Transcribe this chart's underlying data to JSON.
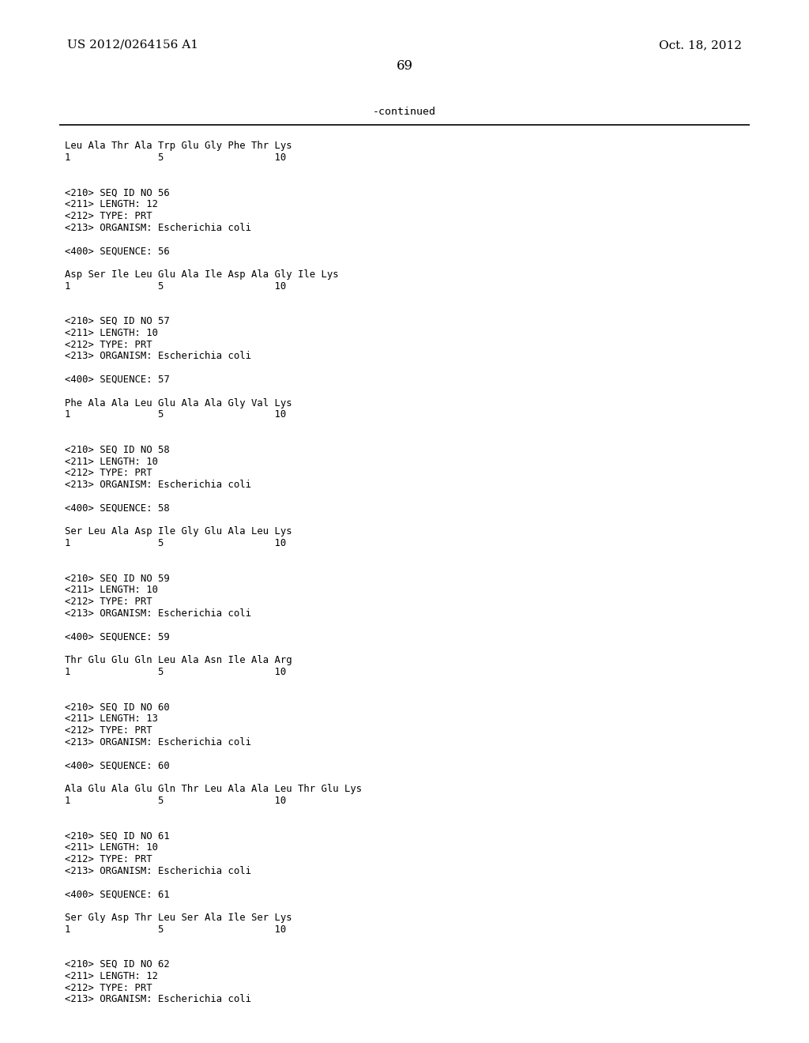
{
  "top_left": "US 2012/0264156 A1",
  "top_right": "Oct. 18, 2012",
  "page_number": "69",
  "continued_label": "-continued",
  "bg_color": "#ffffff",
  "text_color": "#000000",
  "header_fontsize": 11,
  "page_num_fontsize": 12,
  "body_fontsize": 8.8,
  "continued_fontsize": 9.5,
  "lines": [
    "Leu Ala Thr Ala Trp Glu Gly Phe Thr Lys",
    "1               5                   10",
    "",
    "",
    "<210> SEQ ID NO 56",
    "<211> LENGTH: 12",
    "<212> TYPE: PRT",
    "<213> ORGANISM: Escherichia coli",
    "",
    "<400> SEQUENCE: 56",
    "",
    "Asp Ser Ile Leu Glu Ala Ile Asp Ala Gly Ile Lys",
    "1               5                   10",
    "",
    "",
    "<210> SEQ ID NO 57",
    "<211> LENGTH: 10",
    "<212> TYPE: PRT",
    "<213> ORGANISM: Escherichia coli",
    "",
    "<400> SEQUENCE: 57",
    "",
    "Phe Ala Ala Leu Glu Ala Ala Gly Val Lys",
    "1               5                   10",
    "",
    "",
    "<210> SEQ ID NO 58",
    "<211> LENGTH: 10",
    "<212> TYPE: PRT",
    "<213> ORGANISM: Escherichia coli",
    "",
    "<400> SEQUENCE: 58",
    "",
    "Ser Leu Ala Asp Ile Gly Glu Ala Leu Lys",
    "1               5                   10",
    "",
    "",
    "<210> SEQ ID NO 59",
    "<211> LENGTH: 10",
    "<212> TYPE: PRT",
    "<213> ORGANISM: Escherichia coli",
    "",
    "<400> SEQUENCE: 59",
    "",
    "Thr Glu Glu Gln Leu Ala Asn Ile Ala Arg",
    "1               5                   10",
    "",
    "",
    "<210> SEQ ID NO 60",
    "<211> LENGTH: 13",
    "<212> TYPE: PRT",
    "<213> ORGANISM: Escherichia coli",
    "",
    "<400> SEQUENCE: 60",
    "",
    "Ala Glu Ala Glu Gln Thr Leu Ala Ala Leu Thr Glu Lys",
    "1               5                   10",
    "",
    "",
    "<210> SEQ ID NO 61",
    "<211> LENGTH: 10",
    "<212> TYPE: PRT",
    "<213> ORGANISM: Escherichia coli",
    "",
    "<400> SEQUENCE: 61",
    "",
    "Ser Gly Asp Thr Leu Ser Ala Ile Ser Lys",
    "1               5                   10",
    "",
    "",
    "<210> SEQ ID NO 62",
    "<211> LENGTH: 12",
    "<212> TYPE: PRT",
    "<213> ORGANISM: Escherichia coli"
  ]
}
